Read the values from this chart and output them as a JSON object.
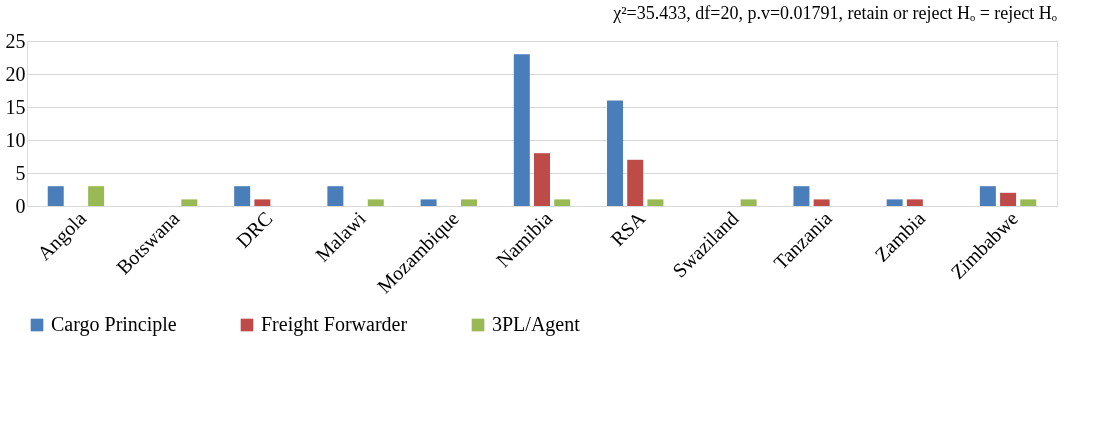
{
  "chart_data": {
    "type": "bar",
    "categories": [
      "Angola",
      "Botswana",
      "DRC",
      "Malawi",
      "Mozambique",
      "Namibia",
      "RSA",
      "Swaziland",
      "Tanzania",
      "Zambia",
      "Zimbabwe"
    ],
    "series": [
      {
        "name": "Cargo Principle",
        "color": "#4a7ebb",
        "values": [
          3,
          0,
          3,
          3,
          1,
          23,
          16,
          0,
          3,
          1,
          3
        ]
      },
      {
        "name": "Freight Forwarder",
        "color": "#be4b48",
        "values": [
          0,
          0,
          1,
          0,
          0,
          8,
          7,
          0,
          1,
          1,
          2
        ]
      },
      {
        "name": "3PL/Agent",
        "color": "#98b954",
        "values": [
          3,
          1,
          0,
          1,
          1,
          1,
          1,
          1,
          0,
          0,
          1
        ]
      }
    ],
    "ylim": [
      0,
      25
    ],
    "yticks": [
      0,
      5,
      10,
      15,
      20,
      25
    ],
    "grid": "y",
    "legend": "bottom",
    "annotations": [
      "χ²=35.433, df=20, p.v=0.01791, retain or reject Hₒ = reject Hₒ"
    ]
  }
}
